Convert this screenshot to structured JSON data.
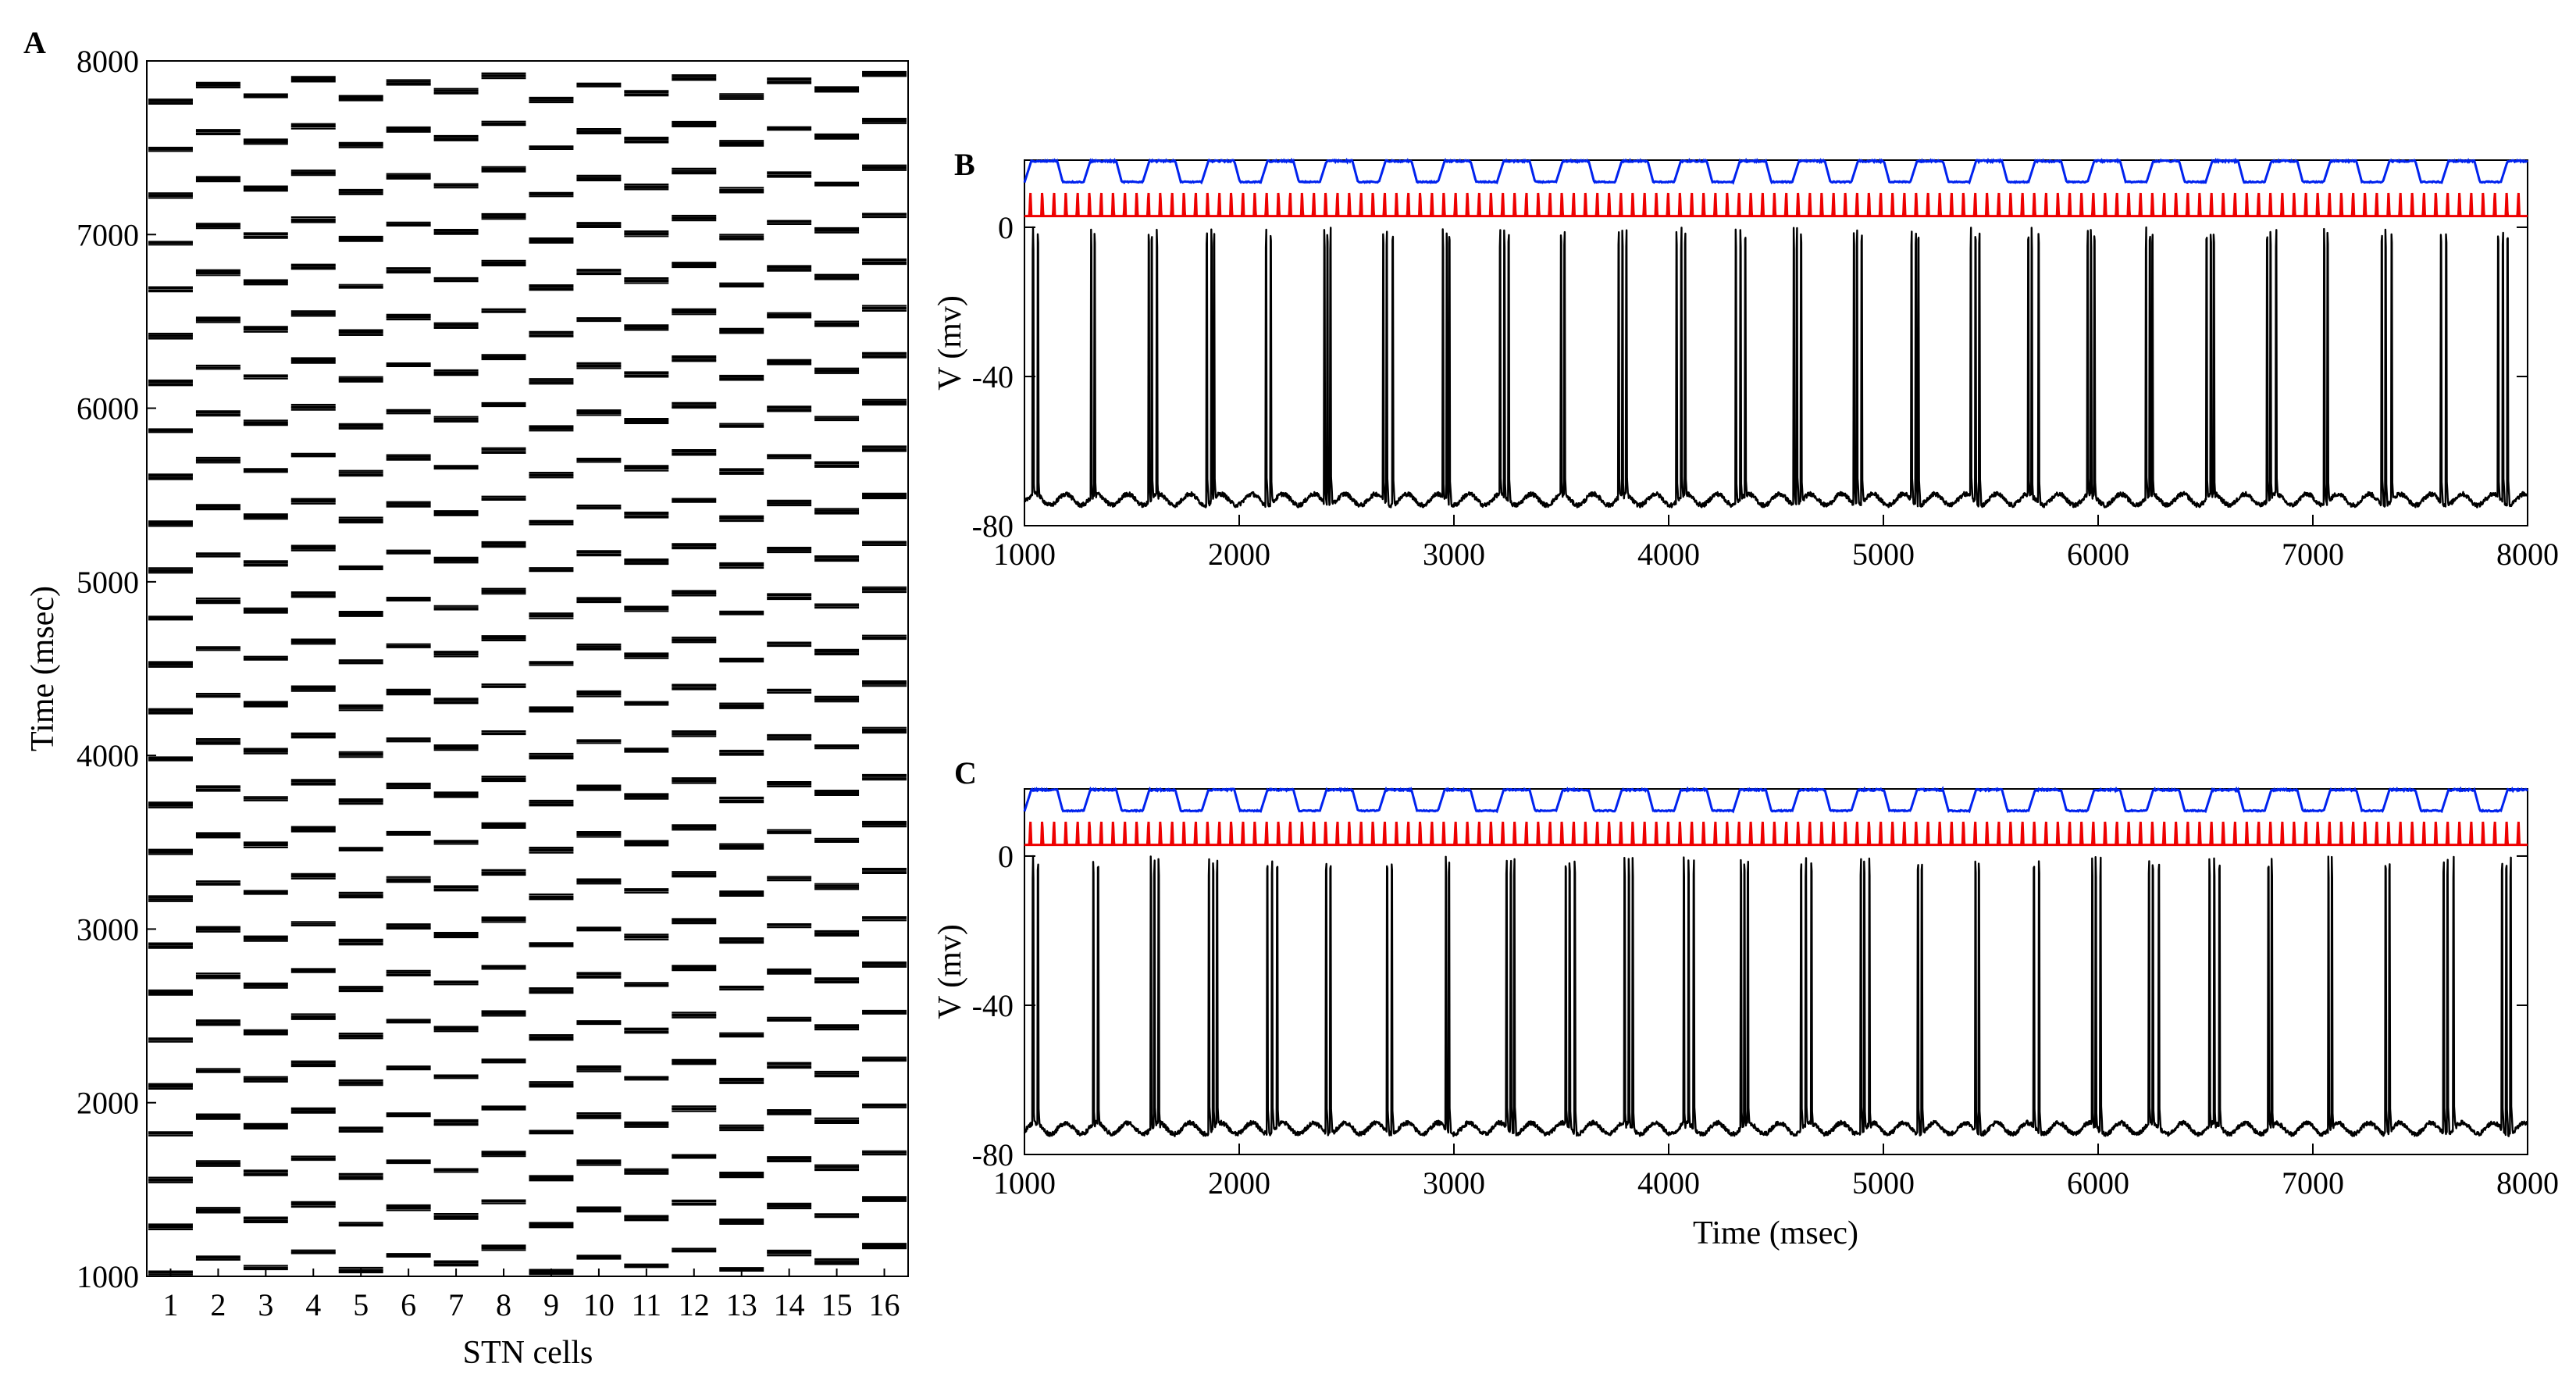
{
  "colors": {
    "raster": "#000000",
    "trace_blue": "#0022ee",
    "trace_red": "#ee0000",
    "trace_black": "#000000"
  },
  "chart_data": [
    {
      "panel": "A",
      "type": "raster",
      "title": "",
      "xlabel": "STN cells",
      "ylabel": "Time (msec)",
      "x_ticks": [
        "1",
        "2",
        "3",
        "4",
        "5",
        "6",
        "7",
        "8",
        "9",
        "10",
        "11",
        "12",
        "13",
        "14",
        "15",
        "16"
      ],
      "y_ticks": [
        1000,
        2000,
        3000,
        4000,
        5000,
        6000,
        7000,
        8000
      ],
      "ylim": [
        1000,
        8000
      ],
      "n_cells": 16,
      "burst_period_ms": 270,
      "cell_phase_ms": [
        0,
        95,
        40,
        130,
        20,
        110,
        60,
        150,
        10,
        100,
        50,
        140,
        30,
        120,
        70,
        160
      ],
      "spikes_per_burst": 4
    },
    {
      "panel": "B",
      "type": "line",
      "xlabel": "",
      "ylabel": "V (mv)",
      "x_ticks": [
        1000,
        2000,
        3000,
        4000,
        5000,
        6000,
        7000,
        8000
      ],
      "y_ticks": [
        -80,
        -40,
        0
      ],
      "xlim": [
        1000,
        8000
      ],
      "ylim": [
        -80,
        18
      ],
      "series": [
        {
          "name": "blue",
          "color": "#0022ee",
          "period_ms": 275,
          "high_mv": 18,
          "low_mv": 12
        },
        {
          "name": "red",
          "color": "#ee0000",
          "period_ms": 55,
          "base_mv": 3,
          "peak_mv": 10
        },
        {
          "name": "black",
          "color": "#000000",
          "rest_mv": -73,
          "spike_peak_mv": 0,
          "burst_period_ms": 275,
          "spikes_per_burst": 3
        }
      ]
    },
    {
      "panel": "C",
      "type": "line",
      "xlabel": "Time (msec)",
      "ylabel": "V (mv)",
      "x_ticks": [
        1000,
        2000,
        3000,
        4000,
        5000,
        6000,
        7000,
        8000
      ],
      "y_ticks": [
        -80,
        -40,
        0
      ],
      "xlim": [
        1000,
        8000
      ],
      "ylim": [
        -80,
        18
      ],
      "series": [
        {
          "name": "blue",
          "color": "#0022ee",
          "period_ms": 275,
          "high_mv": 18,
          "low_mv": 12
        },
        {
          "name": "red",
          "color": "#ee0000",
          "period_ms": 55,
          "base_mv": 3,
          "peak_mv": 10
        },
        {
          "name": "black",
          "color": "#000000",
          "rest_mv": -73,
          "spike_peak_mv": 0,
          "burst_period_ms": 275,
          "spikes_per_burst": 3
        }
      ]
    }
  ],
  "labels": {
    "panel_a": "A",
    "panel_b": "B",
    "panel_c": "C"
  }
}
